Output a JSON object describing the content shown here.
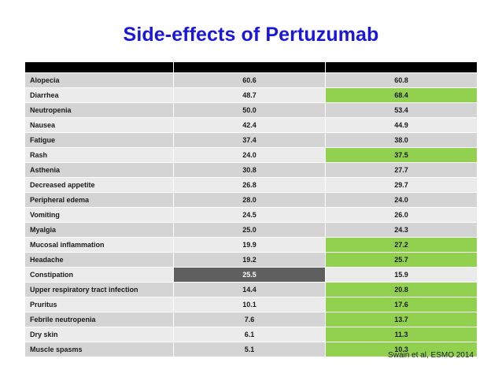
{
  "title": "Side-effects of Pertuzumab",
  "citation": "Swain et al, ESMO 2014",
  "colors": {
    "title": "#1a17d9",
    "highlight_green": "#92d050",
    "highlight_dark": "#5f5f5f"
  },
  "table": {
    "rows": [
      {
        "name": "Alopecia",
        "col2": "60.6",
        "col3": "60.8",
        "hl2": "",
        "hl3": ""
      },
      {
        "name": "Diarrhea",
        "col2": "48.7",
        "col3": "68.4",
        "hl2": "",
        "hl3": "green"
      },
      {
        "name": "Neutropenia",
        "col2": "50.0",
        "col3": "53.4",
        "hl2": "",
        "hl3": ""
      },
      {
        "name": "Nausea",
        "col2": "42.4",
        "col3": "44.9",
        "hl2": "",
        "hl3": ""
      },
      {
        "name": "Fatigue",
        "col2": "37.4",
        "col3": "38.0",
        "hl2": "",
        "hl3": ""
      },
      {
        "name": "Rash",
        "col2": "24.0",
        "col3": "37.5",
        "hl2": "",
        "hl3": "green"
      },
      {
        "name": "Asthenia",
        "col2": "30.8",
        "col3": "27.7",
        "hl2": "",
        "hl3": ""
      },
      {
        "name": "Decreased appetite",
        "col2": "26.8",
        "col3": "29.7",
        "hl2": "",
        "hl3": ""
      },
      {
        "name": "Peripheral edema",
        "col2": "28.0",
        "col3": "24.0",
        "hl2": "",
        "hl3": ""
      },
      {
        "name": "Vomiting",
        "col2": "24.5",
        "col3": "26.0",
        "hl2": "",
        "hl3": ""
      },
      {
        "name": "Myalgia",
        "col2": "25.0",
        "col3": "24.3",
        "hl2": "",
        "hl3": ""
      },
      {
        "name": "Mucosal inflammation",
        "col2": "19.9",
        "col3": "27.2",
        "hl2": "",
        "hl3": "green"
      },
      {
        "name": "Headache",
        "col2": "19.2",
        "col3": "25.7",
        "hl2": "",
        "hl3": "green"
      },
      {
        "name": "Constipation",
        "col2": "25.5",
        "col3": "15.9",
        "hl2": "dark",
        "hl3": ""
      },
      {
        "name": "Upper respiratory tract infection",
        "col2": "14.4",
        "col3": "20.8",
        "hl2": "",
        "hl3": "green"
      },
      {
        "name": "Pruritus",
        "col2": "10.1",
        "col3": "17.6",
        "hl2": "",
        "hl3": "green"
      },
      {
        "name": "Febrile neutropenia",
        "col2": "7.6",
        "col3": "13.7",
        "hl2": "",
        "hl3": "green"
      },
      {
        "name": "Dry skin",
        "col2": "6.1",
        "col3": "11.3",
        "hl2": "",
        "hl3": "green"
      },
      {
        "name": "Muscle spasms",
        "col2": "5.1",
        "col3": "10.3",
        "hl2": "",
        "hl3": "green"
      }
    ]
  }
}
